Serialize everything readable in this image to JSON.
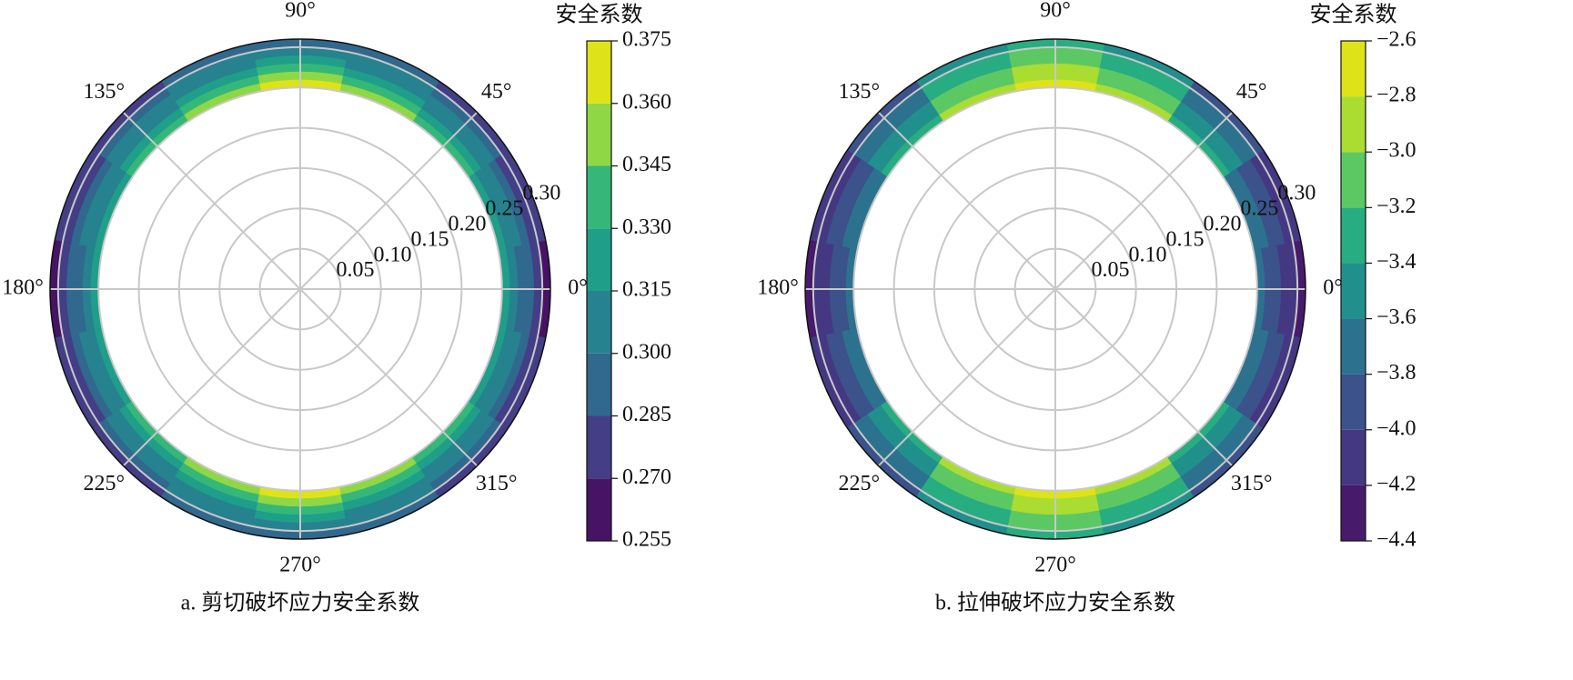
{
  "chart_data": [
    {
      "type": "polar-contour",
      "title": "a. 剪切破坏应力安全系数",
      "colorbar_label": "安全系数",
      "theta": [
        0,
        22.5,
        45,
        67.5,
        90,
        112.5,
        135,
        157.5,
        180,
        202.5,
        225,
        247.5,
        270,
        292.5,
        315,
        337.5
      ],
      "r": [
        0.255,
        0.265,
        0.275,
        0.285,
        0.295,
        0.305
      ],
      "values": [
        [
          0.318,
          0.325,
          0.338,
          0.352,
          0.362,
          0.352,
          0.338,
          0.325,
          0.318,
          0.325,
          0.338,
          0.352,
          0.362,
          0.352,
          0.338,
          0.325
        ],
        [
          0.308,
          0.314,
          0.326,
          0.338,
          0.347,
          0.338,
          0.326,
          0.314,
          0.308,
          0.314,
          0.326,
          0.338,
          0.347,
          0.338,
          0.326,
          0.314
        ],
        [
          0.298,
          0.304,
          0.314,
          0.325,
          0.333,
          0.325,
          0.314,
          0.304,
          0.298,
          0.304,
          0.314,
          0.325,
          0.333,
          0.325,
          0.314,
          0.304
        ],
        [
          0.288,
          0.294,
          0.303,
          0.312,
          0.32,
          0.312,
          0.303,
          0.294,
          0.288,
          0.294,
          0.303,
          0.312,
          0.32,
          0.312,
          0.303,
          0.294
        ],
        [
          0.278,
          0.284,
          0.292,
          0.3,
          0.306,
          0.3,
          0.292,
          0.284,
          0.278,
          0.284,
          0.292,
          0.3,
          0.306,
          0.3,
          0.292,
          0.284
        ],
        [
          0.268,
          0.273,
          0.28,
          0.287,
          0.292,
          0.287,
          0.28,
          0.273,
          0.268,
          0.273,
          0.28,
          0.287,
          0.292,
          0.287,
          0.28,
          0.273
        ]
      ],
      "rlim": [
        0,
        0.31
      ],
      "rticks": [
        0.05,
        {
          "value": 0.1,
          "label": "0.10"
        },
        0.15,
        {
          "value": 0.2,
          "label": "0.20"
        },
        0.25,
        {
          "value": 0.3,
          "label": "0.30"
        }
      ],
      "thetaticks": [
        {
          "value": 0,
          "label": "0°"
        },
        {
          "value": 45,
          "label": "45°"
        },
        {
          "value": 90,
          "label": "90°"
        },
        {
          "value": 135,
          "label": "135°"
        },
        {
          "value": 180,
          "label": "180°"
        },
        {
          "value": 225,
          "label": "225°"
        },
        {
          "value": 270,
          "label": "270°"
        },
        {
          "value": 315,
          "label": "315°"
        }
      ],
      "clim": [
        0.255,
        0.375
      ],
      "cticks": [
        0.255,
        {
          "value": 0.27,
          "label": "0.270"
        },
        0.285,
        {
          "value": 0.3,
          "label": "0.300"
        },
        0.315,
        {
          "value": 0.33,
          "label": "0.330"
        },
        0.345,
        {
          "value": 0.36,
          "label": "0.360"
        },
        0.375
      ],
      "colors": [
        "#471365",
        "#433e85",
        "#31688e",
        "#26828e",
        "#1f9e89",
        "#35b779",
        "#8fd744",
        "#dde318"
      ],
      "grid": true
    },
    {
      "type": "polar-contour",
      "title": "b. 拉伸破坏应力安全系数",
      "colorbar_label": "安全系数",
      "theta": [
        0,
        22.5,
        45,
        67.5,
        90,
        112.5,
        135,
        157.5,
        180,
        202.5,
        225,
        247.5,
        270,
        292.5,
        315,
        337.5
      ],
      "r": [
        0.255,
        0.265,
        0.275,
        0.285,
        0.295,
        0.305
      ],
      "values": [
        [
          -3.8,
          -3.7,
          -3.4,
          -3.0,
          -2.8,
          -3.0,
          -3.4,
          -3.7,
          -3.8,
          -3.7,
          -3.4,
          -3.0,
          -2.8,
          -3.0,
          -3.4,
          -3.7
        ],
        [
          -3.9,
          -3.8,
          -3.5,
          -3.1,
          -2.9,
          -3.1,
          -3.5,
          -3.8,
          -3.9,
          -3.8,
          -3.5,
          -3.1,
          -2.9,
          -3.1,
          -3.5,
          -3.8
        ],
        [
          -4.0,
          -3.9,
          -3.6,
          -3.2,
          -3.0,
          -3.2,
          -3.6,
          -3.9,
          -4.0,
          -3.9,
          -3.6,
          -3.2,
          -3.0,
          -3.2,
          -3.6,
          -3.9
        ],
        [
          -4.1,
          -4.0,
          -3.7,
          -3.3,
          -3.1,
          -3.3,
          -3.7,
          -4.0,
          -4.1,
          -4.0,
          -3.7,
          -3.3,
          -3.1,
          -3.3,
          -3.7,
          -4.0
        ],
        [
          -4.2,
          -4.1,
          -3.8,
          -3.4,
          -3.2,
          -3.4,
          -3.8,
          -4.1,
          -4.2,
          -4.1,
          -3.8,
          -3.4,
          -3.2,
          -3.4,
          -3.8,
          -4.1
        ],
        [
          -4.3,
          -4.2,
          -3.9,
          -3.5,
          -3.3,
          -3.5,
          -3.9,
          -4.2,
          -4.3,
          -4.2,
          -3.9,
          -3.5,
          -3.3,
          -3.5,
          -3.9,
          -4.2
        ]
      ],
      "rlim": [
        0,
        0.31
      ],
      "rticks": [
        0.05,
        {
          "value": 0.1,
          "label": "0.10"
        },
        0.15,
        {
          "value": 0.2,
          "label": "0.20"
        },
        0.25,
        {
          "value": 0.3,
          "label": "0.30"
        }
      ],
      "thetaticks": [
        {
          "value": 0,
          "label": "0°"
        },
        {
          "value": 45,
          "label": "45°"
        },
        {
          "value": 90,
          "label": "90°"
        },
        {
          "value": 135,
          "label": "135°"
        },
        {
          "value": 180,
          "label": "180°"
        },
        {
          "value": 225,
          "label": "225°"
        },
        {
          "value": 270,
          "label": "270°"
        },
        {
          "value": 315,
          "label": "315°"
        }
      ],
      "clim": [
        -4.4,
        -2.6
      ],
      "cticks": [
        {
          "value": -4.4,
          "label": "−4.4"
        },
        {
          "value": -4.2,
          "label": "−4.2"
        },
        {
          "value": -4.0,
          "label": "−4.0"
        },
        {
          "value": -3.8,
          "label": "−3.8"
        },
        {
          "value": -3.6,
          "label": "−3.6"
        },
        {
          "value": -3.4,
          "label": "−3.4"
        },
        {
          "value": -3.2,
          "label": "−3.2"
        },
        {
          "value": -3.0,
          "label": "−3.0"
        },
        {
          "value": -2.8,
          "label": "−2.8"
        },
        {
          "value": -2.6,
          "label": "−2.6"
        }
      ],
      "colors": [
        "#481a6c",
        "#453882",
        "#3b528b",
        "#2c728e",
        "#21908d",
        "#27ad81",
        "#5cc863",
        "#aadc32",
        "#dde318"
      ],
      "grid": true
    }
  ]
}
